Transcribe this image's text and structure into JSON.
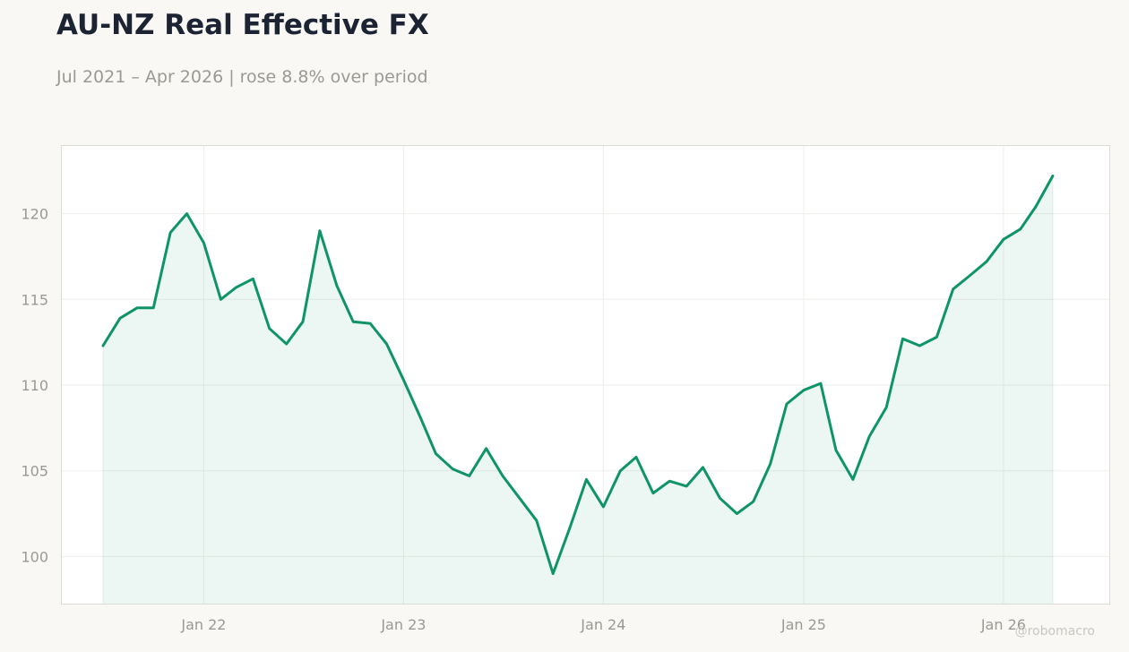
{
  "title": "AU-NZ Real Effective FX",
  "subtitle": "Jul 2021 – Apr 2026 | rose 8.8% over period",
  "watermark": "@robomacro",
  "colors": {
    "line": "#0e9468",
    "fill": "#0e9468",
    "grid": "#eeeeea",
    "frame": "#dcdcd6",
    "tick_text": "#9a9994"
  },
  "chart_data": {
    "type": "area",
    "title": "AU-NZ Real Effective FX",
    "subtitle": "Jul 2021 – Apr 2026 | rose 8.8% over period",
    "xlabel": "",
    "ylabel": "",
    "grid": true,
    "x_ticks": [
      "2022-01-01",
      "2023-01-01",
      "2024-01-01",
      "2025-01-01",
      "2026-01-01"
    ],
    "x_tick_labels": [
      "Jan 22",
      "Jan 23",
      "Jan 24",
      "Jan 25",
      "Jan 26"
    ],
    "y_ticks": [
      100,
      105,
      110,
      115,
      120
    ],
    "xlim": [
      "2021-04-15",
      "2026-07-15"
    ],
    "ylim": [
      97.2,
      124.0
    ],
    "x": [
      "2021-07-01",
      "2021-08-01",
      "2021-09-01",
      "2021-10-01",
      "2021-11-01",
      "2021-12-01",
      "2022-01-01",
      "2022-02-01",
      "2022-03-01",
      "2022-04-01",
      "2022-05-01",
      "2022-06-01",
      "2022-07-01",
      "2022-08-01",
      "2022-09-01",
      "2022-10-01",
      "2022-11-01",
      "2022-12-01",
      "2023-01-01",
      "2023-02-01",
      "2023-03-01",
      "2023-04-01",
      "2023-05-01",
      "2023-06-01",
      "2023-07-01",
      "2023-08-01",
      "2023-09-01",
      "2023-10-01",
      "2023-11-01",
      "2023-12-01",
      "2024-01-01",
      "2024-02-01",
      "2024-03-01",
      "2024-04-01",
      "2024-05-01",
      "2024-06-01",
      "2024-07-01",
      "2024-08-01",
      "2024-09-01",
      "2024-10-01",
      "2024-11-01",
      "2024-12-01",
      "2025-01-01",
      "2025-02-01",
      "2025-03-01",
      "2025-04-01",
      "2025-05-01",
      "2025-06-01",
      "2025-07-01",
      "2025-08-01",
      "2025-09-01",
      "2025-10-01",
      "2025-11-01",
      "2025-12-01",
      "2026-01-01",
      "2026-02-01",
      "2026-03-01",
      "2026-04-01"
    ],
    "series": [
      {
        "values": [
          112.3,
          113.9,
          114.5,
          114.5,
          118.9,
          120.0,
          118.3,
          115.0,
          115.7,
          116.2,
          113.3,
          112.4,
          113.7,
          119.0,
          115.8,
          113.7,
          113.6,
          112.4,
          110.3,
          108.1,
          106.0,
          105.1,
          104.7,
          106.3,
          104.7,
          103.4,
          102.1,
          99.0,
          101.7,
          104.5,
          102.9,
          105.0,
          105.8,
          103.7,
          104.4,
          104.1,
          105.2,
          103.4,
          102.5,
          103.2,
          105.4,
          108.9,
          109.7,
          110.1,
          106.2,
          104.5,
          107.0,
          108.7,
          112.7,
          112.3,
          112.8,
          115.6,
          116.4,
          117.2,
          118.5,
          119.1,
          120.4,
          122.2
        ]
      }
    ]
  }
}
